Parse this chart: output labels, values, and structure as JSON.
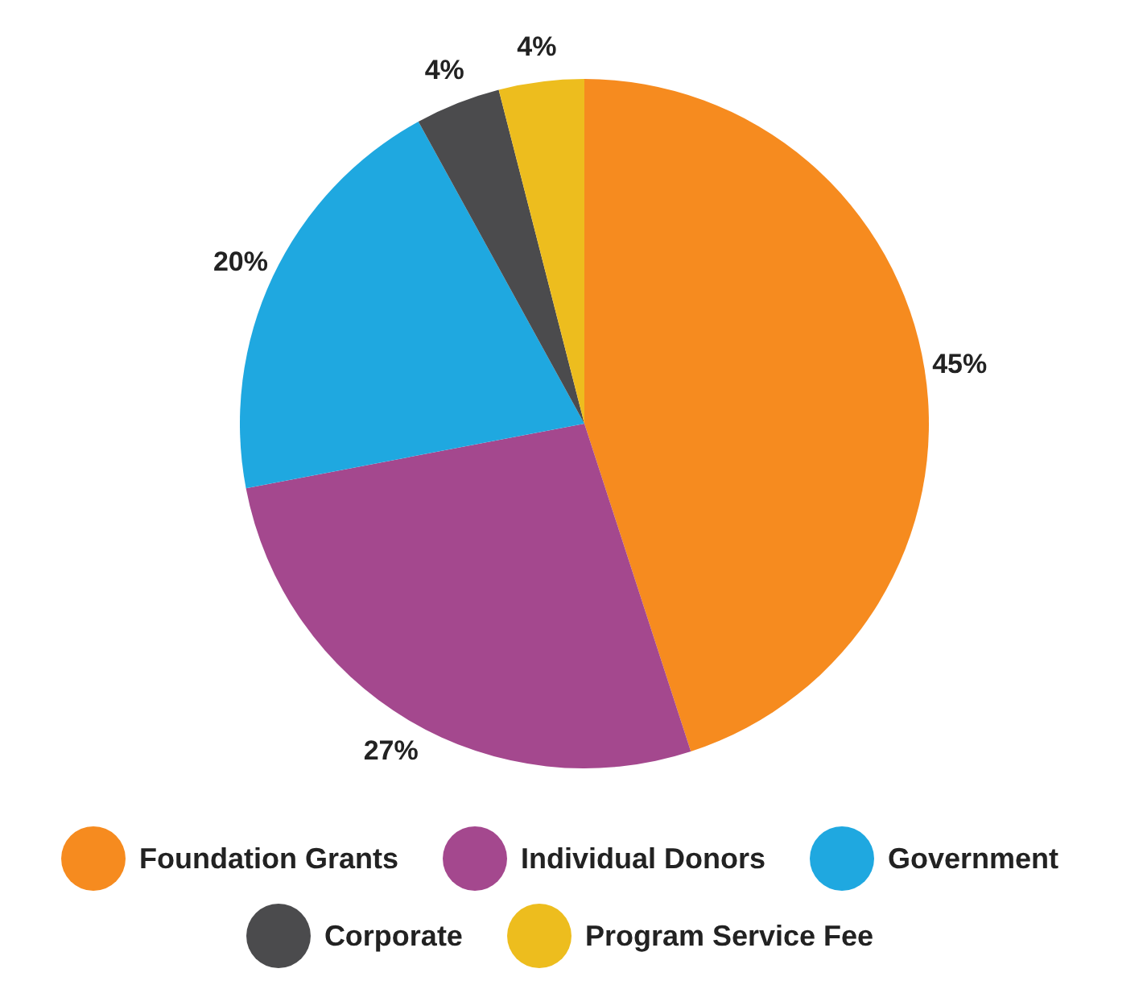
{
  "chart_data": {
    "type": "pie",
    "categories": [
      "Foundation Grants",
      "Individual Donors",
      "Government",
      "Corporate",
      "Program Service Fee"
    ],
    "values": [
      45,
      27,
      20,
      4,
      4
    ],
    "value_labels": [
      "45%",
      "27%",
      "20%",
      "4%",
      "4%"
    ],
    "colors": [
      "#f68b1f",
      "#a4488e",
      "#1fa8e0",
      "#4b4b4d",
      "#edbd1e"
    ],
    "legend": "bottom"
  }
}
